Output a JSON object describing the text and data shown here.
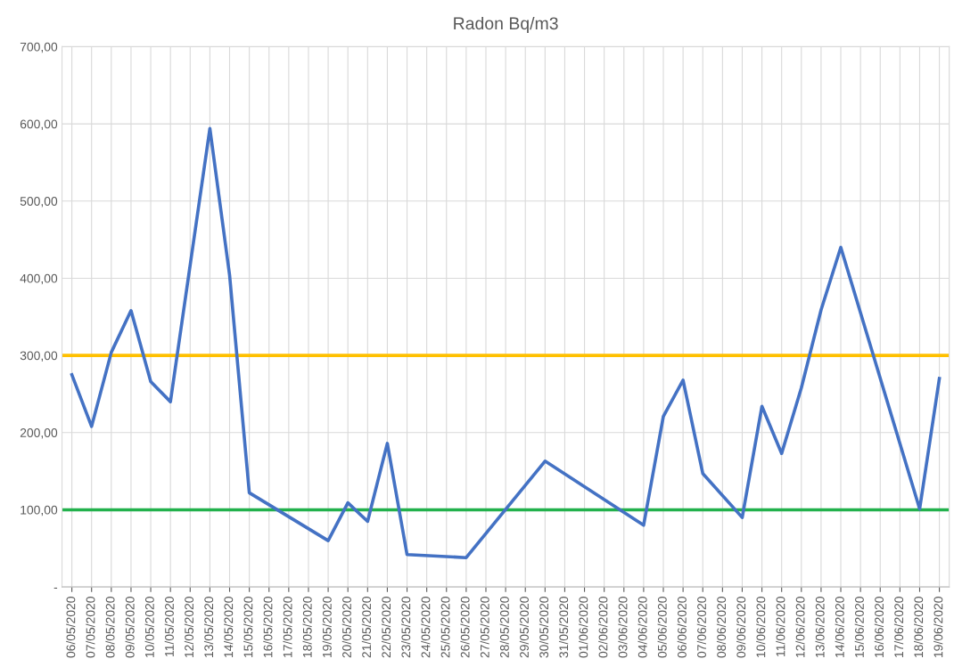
{
  "chart_data": {
    "type": "line",
    "title": "Radon Bq/m3",
    "x": [
      "2020-05-06",
      "2020-05-07",
      "2020-05-08",
      "2020-05-09",
      "2020-05-10",
      "2020-05-11",
      "2020-05-13",
      "2020-05-14",
      "2020-05-15",
      "2020-05-19",
      "2020-05-20",
      "2020-05-21",
      "2020-05-22",
      "2020-05-23",
      "2020-05-26",
      "2020-05-30",
      "2020-06-04",
      "2020-06-05",
      "2020-06-06",
      "2020-06-07",
      "2020-06-09",
      "2020-06-10",
      "2020-06-11",
      "2020-06-12",
      "2020-06-13",
      "2020-06-14",
      "2020-06-18",
      "2020-06-19"
    ],
    "series": [
      {
        "color": "#4472c4",
        "values": [
          275,
          208,
          304,
          358,
          266,
          240,
          594,
          404,
          122,
          60,
          109,
          85,
          186,
          42,
          38,
          163,
          80,
          221,
          268,
          147,
          90,
          234,
          173,
          258,
          359,
          440,
          101,
          270
        ]
      }
    ],
    "xlim": [
      "2020-05-05T12:00",
      "2020-06-19T12:00"
    ],
    "xticks": [
      {
        "value": "2020-05-06",
        "label": "06/05/2020"
      },
      {
        "value": "2020-05-07",
        "label": "07/05/2020"
      },
      {
        "value": "2020-05-08",
        "label": "08/05/2020"
      },
      {
        "value": "2020-05-09",
        "label": "09/05/2020"
      },
      {
        "value": "2020-05-10",
        "label": "10/05/2020"
      },
      {
        "value": "2020-05-11",
        "label": "11/05/2020"
      },
      {
        "value": "2020-05-12",
        "label": "12/05/2020"
      },
      {
        "value": "2020-05-13",
        "label": "13/05/2020"
      },
      {
        "value": "2020-05-14",
        "label": "14/05/2020"
      },
      {
        "value": "2020-05-15",
        "label": "15/05/2020"
      },
      {
        "value": "2020-05-16",
        "label": "16/05/2020"
      },
      {
        "value": "2020-05-17",
        "label": "17/05/2020"
      },
      {
        "value": "2020-05-18",
        "label": "18/05/2020"
      },
      {
        "value": "2020-05-19",
        "label": "19/05/2020"
      },
      {
        "value": "2020-05-20",
        "label": "20/05/2020"
      },
      {
        "value": "2020-05-21",
        "label": "21/05/2020"
      },
      {
        "value": "2020-05-22",
        "label": "22/05/2020"
      },
      {
        "value": "2020-05-23",
        "label": "23/05/2020"
      },
      {
        "value": "2020-05-24",
        "label": "24/05/2020"
      },
      {
        "value": "2020-05-25",
        "label": "25/05/2020"
      },
      {
        "value": "2020-05-26",
        "label": "26/05/2020"
      },
      {
        "value": "2020-05-27",
        "label": "27/05/2020"
      },
      {
        "value": "2020-05-28",
        "label": "28/05/2020"
      },
      {
        "value": "2020-05-29",
        "label": "29/05/2020"
      },
      {
        "value": "2020-05-30",
        "label": "30/05/2020"
      },
      {
        "value": "2020-05-31",
        "label": "31/05/2020"
      },
      {
        "value": "2020-06-01",
        "label": "01/06/2020"
      },
      {
        "value": "2020-06-02",
        "label": "02/06/2020"
      },
      {
        "value": "2020-06-03",
        "label": "03/06/2020"
      },
      {
        "value": "2020-06-04",
        "label": "04/06/2020"
      },
      {
        "value": "2020-06-05",
        "label": "05/06/2020"
      },
      {
        "value": "2020-06-06",
        "label": "06/06/2020"
      },
      {
        "value": "2020-06-07",
        "label": "07/06/2020"
      },
      {
        "value": "2020-06-08",
        "label": "08/06/2020"
      },
      {
        "value": "2020-06-09",
        "label": "09/06/2020"
      },
      {
        "value": "2020-06-10",
        "label": "10/06/2020"
      },
      {
        "value": "2020-06-11",
        "label": "11/06/2020"
      },
      {
        "value": "2020-06-12",
        "label": "12/06/2020"
      },
      {
        "value": "2020-06-13",
        "label": "13/06/2020"
      },
      {
        "value": "2020-06-14",
        "label": "14/06/2020"
      },
      {
        "value": "2020-06-15",
        "label": "15/06/2020"
      },
      {
        "value": "2020-06-16",
        "label": "16/06/2020"
      },
      {
        "value": "2020-06-17",
        "label": "17/06/2020"
      },
      {
        "value": "2020-06-18",
        "label": "18/06/2020"
      },
      {
        "value": "2020-06-19",
        "label": "19/06/2020"
      }
    ],
    "ylim": [
      0,
      700
    ],
    "yticks": [
      {
        "value": 0,
        "label": "-"
      },
      {
        "value": 100,
        "label": "100,00"
      },
      {
        "value": 200,
        "label": "200,00"
      },
      {
        "value": 300,
        "label": "300,00"
      },
      {
        "value": 400,
        "label": "400,00"
      },
      {
        "value": 500,
        "label": "500,00"
      },
      {
        "value": 600,
        "label": "600,00"
      },
      {
        "value": 700,
        "label": "700,00"
      }
    ],
    "ref_lines": [
      {
        "axis": "y",
        "value": 300,
        "color": "#ffc000"
      },
      {
        "axis": "y",
        "value": 100,
        "color": "#22b14c"
      }
    ],
    "grid": true,
    "marker": "none",
    "line_style": "solid"
  }
}
